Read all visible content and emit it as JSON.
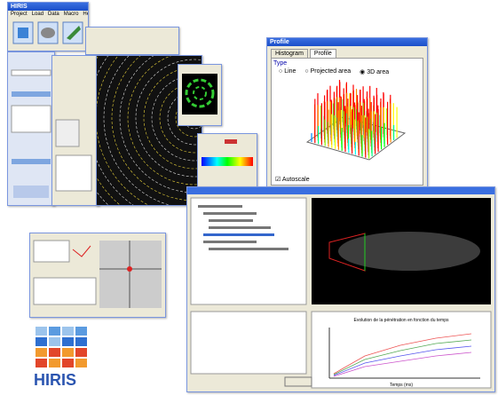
{
  "logo": {
    "text": "HIRIS"
  },
  "main_window": {
    "title": "HIRIS",
    "menu": [
      "Project",
      "Load",
      "Data",
      "Macro",
      "Help"
    ]
  },
  "profile_window": {
    "title": "Profile",
    "tabs": [
      "Histogram",
      "Profile"
    ],
    "group": "Type",
    "options": [
      "Line",
      "Projected area",
      "3D area"
    ],
    "checkbox": "Autoscale"
  },
  "analysis_window": {
    "chart_title": "Evolution de la pénétration en fonction du temps",
    "x_label": "Temps (ms)"
  }
}
